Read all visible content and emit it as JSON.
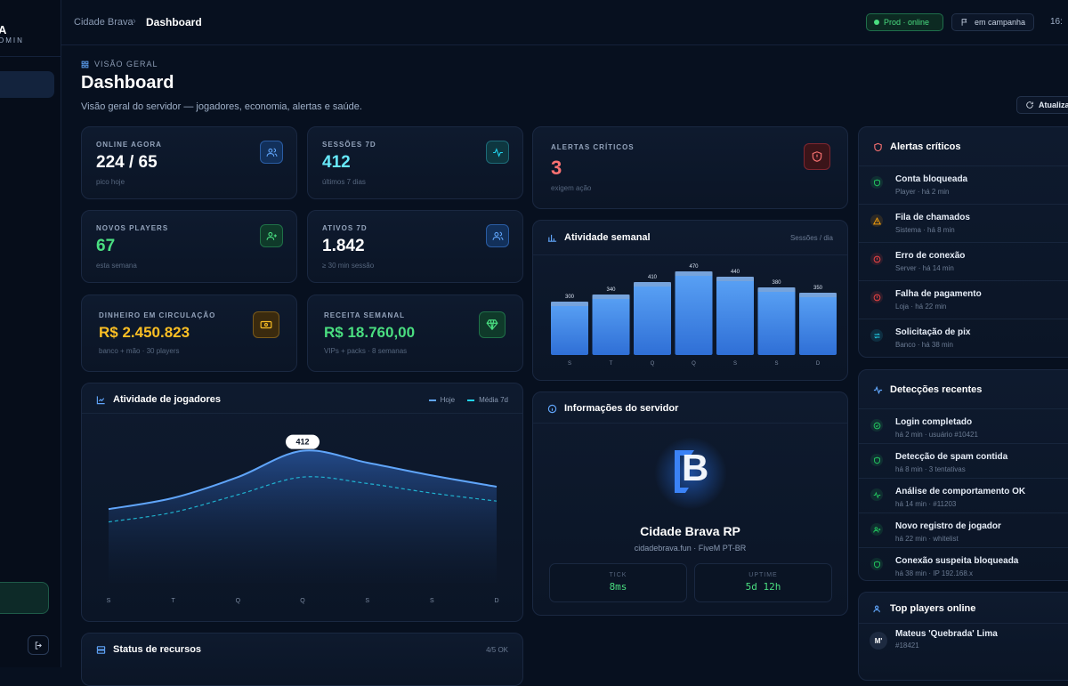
{
  "sidebar": {
    "brand": "A",
    "brand_sub": "OMIN"
  },
  "topbar": {
    "crumb_root": "Cidade Brava",
    "crumb_sep": "›",
    "crumb_current": "Dashboard",
    "status": "Prod · online",
    "campaign": "em campanha",
    "clock": "16:"
  },
  "page": {
    "eyebrow": "VISÃO GERAL",
    "title": "Dashboard",
    "subtitle": "Visão geral do servidor — jogadores, economia, alertas e saúde.",
    "refresh": "Atualizar"
  },
  "kpis": [
    {
      "label": "ONLINE AGORA",
      "value": "224 / 65",
      "hint": "pico hoje",
      "color": "#ffffff",
      "icon": "users-icon"
    },
    {
      "label": "SESSÕES 7D",
      "value": "412",
      "hint": "últimos 7 dias",
      "color": "#67e8f9",
      "icon": "activity-icon"
    },
    {
      "label": "NOVOS PLAYERS",
      "value": "67",
      "hint": "esta semana",
      "color": "#4ade80",
      "icon": "user-plus-icon"
    },
    {
      "label": "ATIVOS 7D",
      "value": "1.842",
      "hint": "≥ 30 min sessão",
      "color": "#ffffff",
      "icon": "users-icon"
    },
    {
      "label": "DINHEIRO EM CIRCULAÇÃO",
      "value": "R$ 2.450.823",
      "hint": "banco + mão · 30 players",
      "color": "#fbbf24",
      "icon": "cash-icon"
    },
    {
      "label": "RECEITA SEMANAL",
      "value": "R$ 18.760,00",
      "hint": "VIPs + packs · 8 semanas",
      "color": "#4ade80",
      "icon": "gem-icon"
    }
  ],
  "critical": {
    "label": "ALERTAS CRÍTICOS",
    "value": "3",
    "hint": "exigem ação"
  },
  "weekly": {
    "title": "Atividade semanal",
    "unit": "Sessões / dia"
  },
  "players_chart": {
    "title": "Atividade de jogadores",
    "legend_today": "Hoje",
    "legend_avg": "Média 7d",
    "peak_label": "412"
  },
  "server": {
    "title": "Informações do servidor",
    "name": "Cidade Brava RP",
    "host": "cidadebrava.fun · FiveM PT-BR",
    "tick_label": "TICK",
    "tick_value": "8ms",
    "uptime_label": "UPTIME",
    "uptime_value": "5d 12h",
    "logo_letter": "B"
  },
  "status": {
    "title": "Status de recursos",
    "count": "4/5 OK"
  },
  "alerts": {
    "title": "Alertas críticos",
    "items": [
      {
        "title": "Conta bloqueada",
        "sub": "Player · há 2 min",
        "color": "#22c55e",
        "icon": "shield-icon"
      },
      {
        "title": "Fila de chamados",
        "sub": "Sistema · há 8 min",
        "color": "#f59e0b",
        "icon": "warning-icon"
      },
      {
        "title": "Erro de conexão",
        "sub": "Server · há 14 min",
        "color": "#ef4444",
        "icon": "error-icon"
      },
      {
        "title": "Falha de pagamento",
        "sub": "Loja · há 22 min",
        "color": "#ef4444",
        "icon": "error-icon"
      },
      {
        "title": "Solicitação de pix",
        "sub": "Banco · há 38 min",
        "color": "#22d3ee",
        "icon": "transfer-icon"
      }
    ]
  },
  "detections": {
    "title": "Detecções recentes",
    "items": [
      {
        "title": "Login completado",
        "sub": "há 2 min · usuário #10421",
        "color": "#22c55e",
        "icon": "check-icon"
      },
      {
        "title": "Detecção de spam contida",
        "sub": "há 8 min · 3 tentativas",
        "color": "#22c55e",
        "icon": "shield-icon"
      },
      {
        "title": "Análise de comportamento OK",
        "sub": "há 14 min · #11203",
        "color": "#22c55e",
        "icon": "activity-icon"
      },
      {
        "title": "Novo registro de jogador",
        "sub": "há 22 min · whitelist",
        "color": "#22c55e",
        "icon": "user-plus-icon"
      },
      {
        "title": "Conexão suspeita bloqueada",
        "sub": "há 38 min · IP 192.168.x",
        "color": "#22c55e",
        "icon": "shield-icon"
      }
    ]
  },
  "top_players": {
    "title": "Top players online",
    "first_name": "Mateus 'Quebrada' Lima",
    "first_id": "#18421",
    "first_avatar": "M'"
  },
  "chart_data": [
    {
      "type": "bar",
      "title": "Atividade semanal",
      "ylabel": "Sessões / dia",
      "categories": [
        "S",
        "T",
        "Q",
        "Q",
        "S",
        "S",
        "D"
      ],
      "values": [
        300,
        340,
        410,
        470,
        440,
        380,
        350
      ],
      "ylim": [
        0,
        500
      ]
    },
    {
      "type": "area",
      "title": "Atividade de jogadores",
      "categories": [
        "S",
        "T",
        "Q",
        "Q",
        "S",
        "S",
        "D"
      ],
      "series": [
        {
          "name": "Hoje",
          "values": [
            230,
            265,
            330,
            412,
            375,
            335,
            300
          ]
        },
        {
          "name": "Média 7d",
          "values": [
            190,
            220,
            275,
            330,
            310,
            280,
            255
          ]
        }
      ],
      "ylim": [
        0,
        500
      ],
      "annotation": "412"
    }
  ]
}
